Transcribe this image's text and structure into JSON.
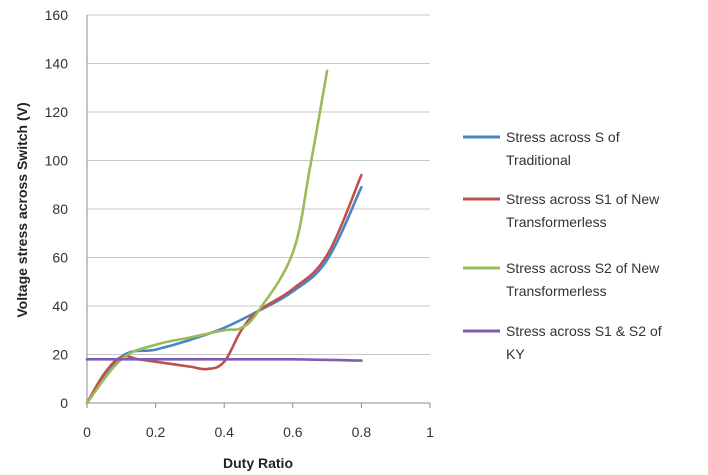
{
  "chart_data": {
    "type": "line",
    "title": "",
    "xlabel": "Duty Ratio",
    "ylabel": "Voltage stress across Switch (V)",
    "xlim": [
      0,
      1
    ],
    "ylim": [
      0,
      160
    ],
    "x_ticks": [
      "0",
      "0.2",
      "0.4",
      "0.6",
      "0.8",
      "1"
    ],
    "y_ticks": [
      "0",
      "20",
      "40",
      "60",
      "80",
      "100",
      "120",
      "140",
      "160"
    ],
    "grid": "horizontal",
    "legend_position": "right",
    "series": [
      {
        "name": "Stress across S of Traditional",
        "color": "#4a86c5",
        "points": [
          [
            0,
            0
          ],
          [
            0.1,
            19
          ],
          [
            0.2,
            22
          ],
          [
            0.3,
            26
          ],
          [
            0.4,
            31
          ],
          [
            0.5,
            38
          ],
          [
            0.6,
            46
          ],
          [
            0.7,
            59
          ],
          [
            0.8,
            89
          ]
        ]
      },
      {
        "name": "Stress across S1 of New Transformerless",
        "color": "#c0504d",
        "points": [
          [
            0,
            0
          ],
          [
            0.05,
            12
          ],
          [
            0.1,
            19
          ],
          [
            0.15,
            18
          ],
          [
            0.2,
            17
          ],
          [
            0.3,
            15
          ],
          [
            0.35,
            14
          ],
          [
            0.4,
            17
          ],
          [
            0.45,
            30
          ],
          [
            0.5,
            38
          ],
          [
            0.6,
            47
          ],
          [
            0.7,
            61
          ],
          [
            0.8,
            94
          ]
        ]
      },
      {
        "name": "Stress across S2 of New Transformerless",
        "color": "#9bbb59",
        "points": [
          [
            0,
            0
          ],
          [
            0.1,
            18
          ],
          [
            0.2,
            24
          ],
          [
            0.3,
            27
          ],
          [
            0.4,
            30
          ],
          [
            0.45,
            31
          ],
          [
            0.5,
            38
          ],
          [
            0.6,
            62
          ],
          [
            0.65,
            97
          ],
          [
            0.7,
            137
          ]
        ]
      },
      {
        "name": "Stress across S1 & S2 of KY",
        "color": "#7e5eb0",
        "points": [
          [
            0,
            18
          ],
          [
            0.2,
            18
          ],
          [
            0.4,
            18
          ],
          [
            0.6,
            18
          ],
          [
            0.8,
            17.5
          ]
        ]
      }
    ]
  },
  "legend_lines": [
    [
      "Stress across S of",
      "Traditional"
    ],
    [
      "Stress across S1 of New",
      "Transformerless"
    ],
    [
      "Stress across S2 of New",
      "Transformerless"
    ],
    [
      "Stress across S1 & S2 of",
      "KY"
    ]
  ]
}
